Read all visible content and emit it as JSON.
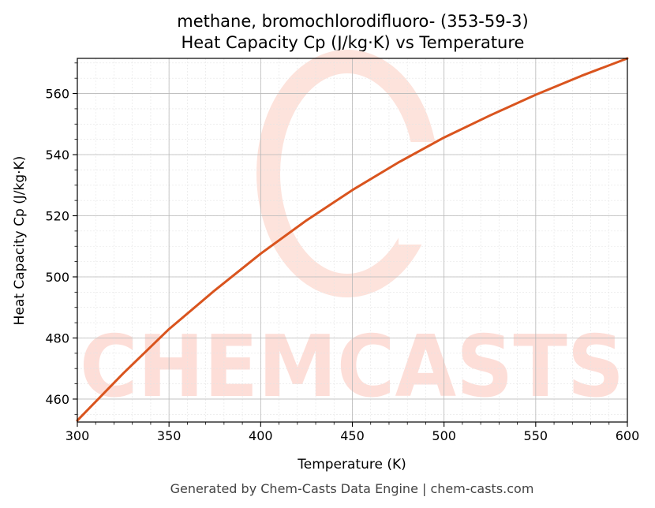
{
  "chart_data": {
    "type": "line",
    "title_line1": "methane, bromochlorodifluoro- (353-59-3)",
    "title_line2": "Heat Capacity Cp (J/kg·K) vs Temperature",
    "xlabel": "Temperature (K)",
    "ylabel": "Heat Capacity Cp (J/kg·K)",
    "xlim": [
      300,
      600
    ],
    "ylim": [
      452.5,
      571.5
    ],
    "xticks": [
      300,
      350,
      400,
      450,
      500,
      550,
      600
    ],
    "yticks": [
      460,
      480,
      500,
      520,
      540,
      560
    ],
    "grid": true,
    "minor_grid": true,
    "series": [
      {
        "color": "#d9541e",
        "x": [
          300,
          325,
          350,
          375,
          400,
          425,
          450,
          475,
          500,
          525,
          550,
          575,
          600
        ],
        "y": [
          453.0,
          468.4,
          482.9,
          495.6,
          507.6,
          518.5,
          528.4,
          537.4,
          545.6,
          552.8,
          559.6,
          565.8,
          571.5
        ]
      }
    ]
  },
  "watermark": {
    "text": "CHEMCASTS",
    "color": "#fdded8"
  },
  "footer": "Generated by Chem-Casts Data Engine | chem-casts.com"
}
